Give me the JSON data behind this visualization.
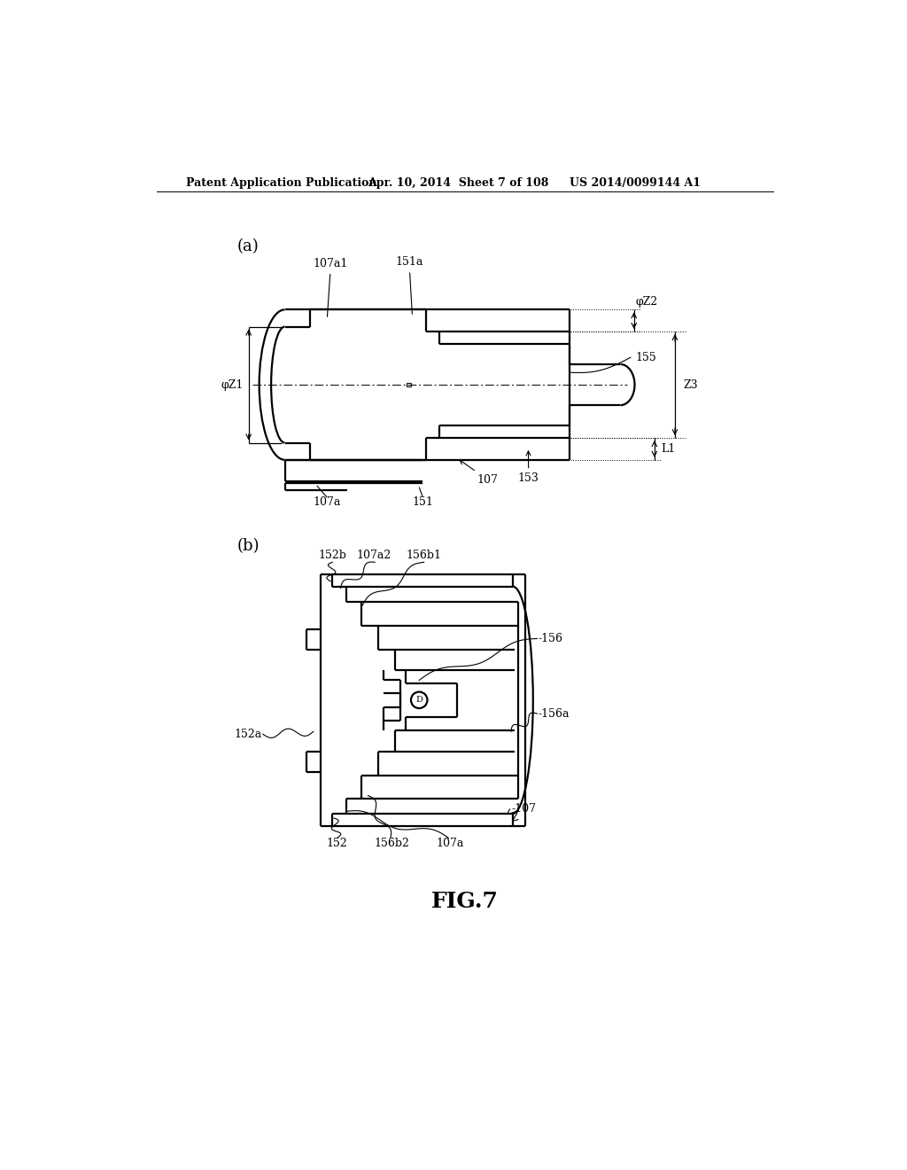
{
  "bg_color": "#ffffff",
  "header_left": "Patent Application Publication",
  "header_mid": "Apr. 10, 2014  Sheet 7 of 108",
  "header_right": "US 2014/0099144 A1",
  "figure_label": "FIG.7",
  "panel_a_label": "(a)",
  "panel_b_label": "(b)"
}
